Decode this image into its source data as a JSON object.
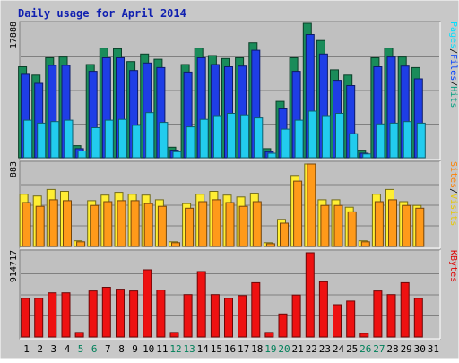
{
  "chart_data": {
    "type": "bar",
    "title": "Daily usage for April 2014",
    "categories": [
      "1",
      "2",
      "3",
      "4",
      "5",
      "6",
      "7",
      "8",
      "9",
      "10",
      "11",
      "12",
      "13",
      "14",
      "15",
      "16",
      "17",
      "18",
      "19",
      "20",
      "21",
      "22",
      "23",
      "24",
      "25",
      "26",
      "27",
      "28",
      "29",
      "30",
      "31"
    ],
    "weekend_days": [
      "5",
      "6",
      "12",
      "13",
      "19",
      "20",
      "26",
      "27"
    ],
    "panels": [
      {
        "id": "pages-files-hits",
        "max_label": "17888",
        "ylim": [
          0,
          17888
        ],
        "grid": true,
        "side_legend": [
          {
            "text": "Hits",
            "color": "#00a080"
          },
          {
            "text": "/",
            "color": "#000000"
          },
          {
            "text": "Files",
            "color": "#0040ff"
          },
          {
            "text": "/",
            "color": "#000000"
          },
          {
            "text": "Pages",
            "color": "#00e0ff"
          }
        ],
        "series": [
          {
            "name": "Hits",
            "color": "#1a8c5a",
            "values": [
              12100,
              11000,
              13300,
              13400,
              1600,
              12400,
              14600,
              14500,
              12800,
              13800,
              13100,
              1400,
              12400,
              14600,
              13600,
              13200,
              13300,
              15300,
              1200,
              7500,
              13300,
              17888,
              15600,
              11700,
              11000,
              1000,
              13300,
              14600,
              13400,
              12000,
              0
            ]
          },
          {
            "name": "Files",
            "color": "#1e3ee6",
            "values": [
              11100,
              9900,
              12300,
              12300,
              1200,
              11500,
              13300,
              13300,
              11600,
              12600,
              12000,
              1000,
              11400,
              13300,
              12400,
              12100,
              12200,
              14300,
              800,
              6500,
              11500,
              16400,
              13800,
              10300,
              9600,
              600,
              12100,
              13400,
              12200,
              10500,
              0
            ]
          },
          {
            "name": "Pages",
            "color": "#22ccee",
            "values": [
              5000,
              4600,
              4800,
              5000,
              900,
              4000,
              5000,
              5100,
              4300,
              6000,
              4700,
              800,
              4100,
              5100,
              5600,
              5900,
              5700,
              5300,
              600,
              3800,
              5000,
              6200,
              5600,
              5900,
              3200,
              500,
              4500,
              4600,
              4800,
              4600,
              0
            ]
          }
        ]
      },
      {
        "id": "sites-visits",
        "max_label": "883",
        "ylim": [
          0,
          883
        ],
        "grid": true,
        "side_legend": [
          {
            "text": "Visits",
            "color": "#e8c800"
          },
          {
            "text": "/",
            "color": "#000000"
          },
          {
            "text": "Sites",
            "color": "#ff8000"
          }
        ],
        "series": [
          {
            "name": "Visits",
            "color": "#ffee33",
            "values": [
              560,
              540,
              610,
              590,
              60,
              490,
              550,
              580,
              560,
              550,
              500,
              50,
              460,
              560,
              590,
              550,
              530,
              570,
              40,
              290,
              760,
              883,
              500,
              500,
              420,
              60,
              560,
              610,
              480,
              440,
              0
            ]
          },
          {
            "name": "Sites",
            "color": "#ff9a1a",
            "values": [
              470,
              430,
              500,
              490,
              50,
              440,
              480,
              490,
              490,
              460,
              430,
              40,
              410,
              480,
              500,
              470,
              430,
              480,
              30,
              250,
              700,
              883,
              440,
              440,
              370,
              50,
              480,
              500,
              440,
              410,
              0
            ]
          }
        ]
      },
      {
        "id": "kbytes",
        "max_label": "914717",
        "ylim": [
          0,
          914717
        ],
        "grid": true,
        "side_legend": [
          {
            "text": "KBytes",
            "color": "#e00000"
          }
        ],
        "series": [
          {
            "name": "KBytes",
            "color": "#ee1111",
            "values": [
              420000,
              420000,
              480000,
              480000,
              50000,
              500000,
              540000,
              520000,
              500000,
              730000,
              510000,
              50000,
              460000,
              710000,
              460000,
              420000,
              450000,
              590000,
              50000,
              250000,
              455000,
              914717,
              600000,
              350000,
              390000,
              40000,
              500000,
              460000,
              590000,
              420000,
              0
            ]
          }
        ]
      }
    ]
  }
}
